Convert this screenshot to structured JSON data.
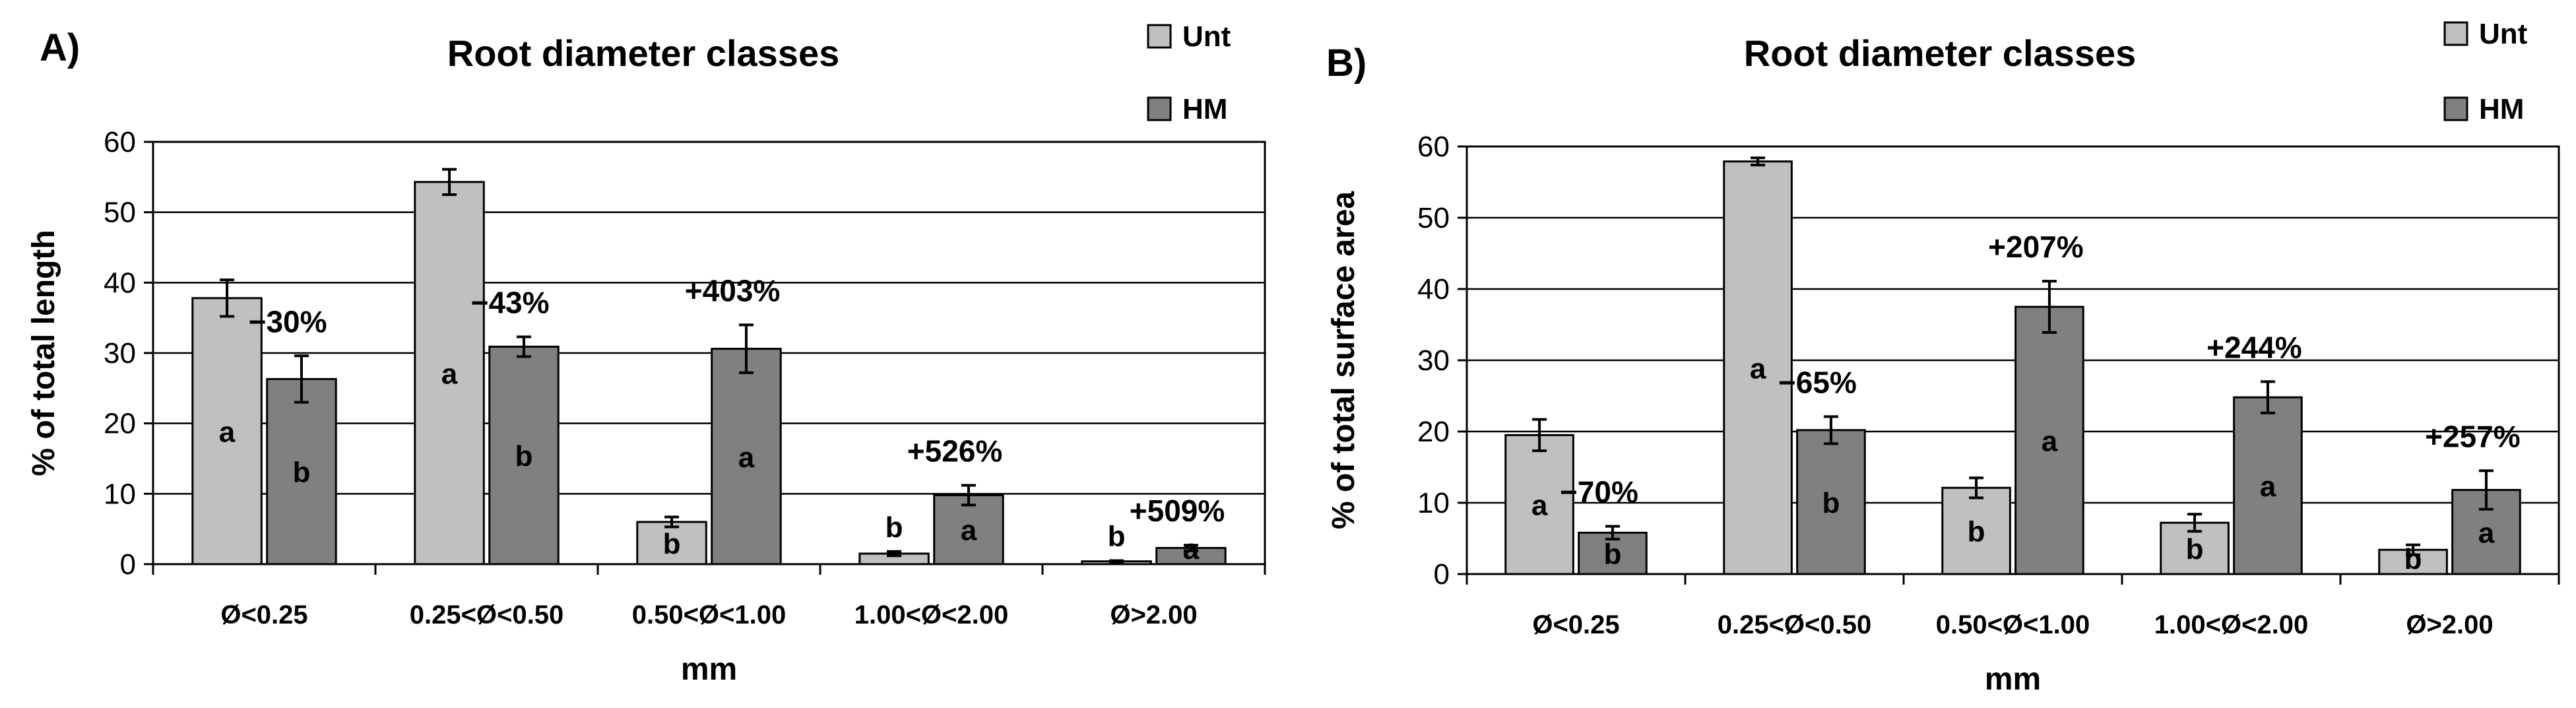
{
  "chart_data": [
    {
      "type": "bar",
      "panel_label": "A)",
      "title": "Root diameter classes",
      "xlabel": "mm",
      "ylabel": "% of total length",
      "ylim": [
        0,
        60
      ],
      "yticks": [
        0,
        10,
        20,
        30,
        40,
        50,
        60
      ],
      "grid": true,
      "legend": "top-right",
      "categories": [
        "Ø<0.25",
        "0.25<Ø<0.50",
        "0.50<Ø<1.00",
        "1.00<Ø<2.00",
        "Ø>2.00"
      ],
      "series": [
        {
          "name": "Unt",
          "color": "#c0c0c0",
          "values": [
            37.8,
            54.3,
            6.0,
            1.5,
            0.4
          ],
          "errors": [
            2.6,
            1.8,
            0.7,
            0.3,
            0.1
          ],
          "letters": [
            "a",
            "a",
            "b",
            "b",
            "b"
          ]
        },
        {
          "name": "HM",
          "color": "#808080",
          "values": [
            26.3,
            30.9,
            30.6,
            9.8,
            2.3
          ],
          "errors": [
            3.3,
            1.4,
            3.4,
            1.4,
            0.4
          ],
          "letters": [
            "b",
            "b",
            "a",
            "a",
            "a"
          ]
        }
      ],
      "annotations": [
        "−30%",
        "−43%",
        "+403%",
        "+526%",
        "+509%"
      ]
    },
    {
      "type": "bar",
      "panel_label": "B)",
      "title": "Root diameter classes",
      "xlabel": "mm",
      "ylabel": "% of total surface area",
      "ylim": [
        0,
        60
      ],
      "yticks": [
        0,
        10,
        20,
        30,
        40,
        50,
        60
      ],
      "grid": true,
      "legend": "top-right",
      "categories": [
        "Ø<0.25",
        "0.25<Ø<0.50",
        "0.50<Ø<1.00",
        "1.00<Ø<2.00",
        "Ø>2.00"
      ],
      "series": [
        {
          "name": "Unt",
          "color": "#c0c0c0",
          "values": [
            19.5,
            57.9,
            12.1,
            7.2,
            3.4
          ],
          "errors": [
            2.2,
            0.5,
            1.4,
            1.2,
            0.7
          ],
          "letters": [
            "a",
            "a",
            "b",
            "b",
            "b"
          ]
        },
        {
          "name": "HM",
          "color": "#808080",
          "values": [
            5.8,
            20.2,
            37.5,
            24.8,
            11.8
          ],
          "errors": [
            0.9,
            1.9,
            3.6,
            2.2,
            2.7
          ],
          "letters": [
            "b",
            "b",
            "a",
            "a",
            "a"
          ]
        }
      ],
      "annotations": [
        "−70%",
        "−65%",
        "+207%",
        "+244%",
        "+257%"
      ]
    }
  ]
}
